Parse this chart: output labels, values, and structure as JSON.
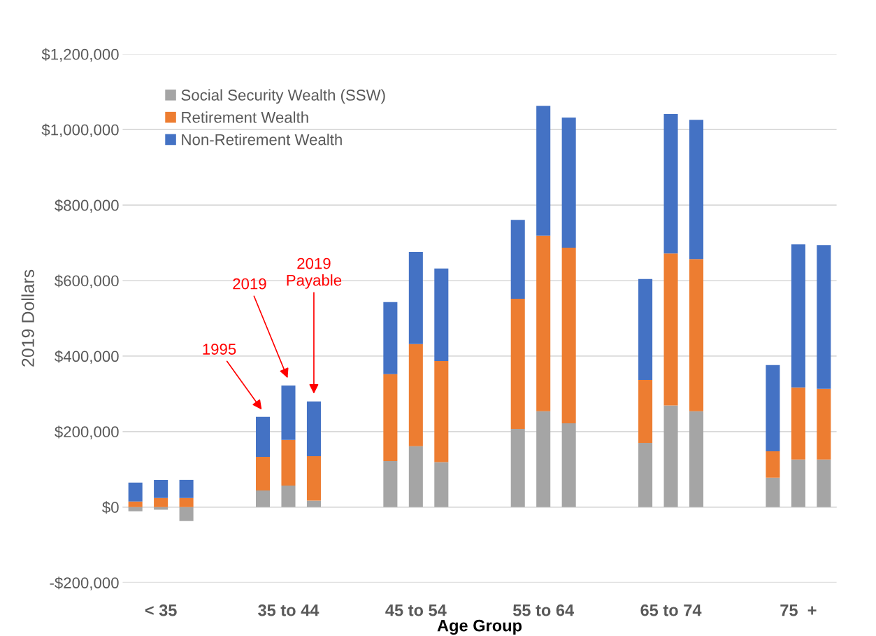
{
  "chart_data": {
    "type": "bar",
    "stacked": true,
    "ylabel": "2019 Dollars",
    "xlabel": "Age Group",
    "categories": [
      null,
      "< 35",
      null,
      null,
      null,
      null,
      "35 to 44",
      null,
      null,
      null,
      null,
      "45 to 54",
      null,
      null,
      null,
      null,
      "55 to 64",
      null,
      null,
      null,
      null,
      "65 to 74",
      null,
      null,
      null,
      null,
      "75  +",
      null
    ],
    "series": [
      {
        "name": "Social Security Wealth (SSW)",
        "color": "#a5a5a5",
        "values": [
          -11000,
          -7000,
          -37000,
          null,
          null,
          44000,
          57000,
          17000,
          null,
          null,
          122000,
          161000,
          119000,
          null,
          null,
          207000,
          254000,
          222000,
          null,
          null,
          170000,
          269000,
          254000,
          null,
          null,
          78000,
          126000,
          126000
        ]
      },
      {
        "name": "Retirement Wealth",
        "color": "#ed7d31",
        "values": [
          15000,
          24000,
          24000,
          null,
          null,
          89000,
          121000,
          118000,
          null,
          null,
          230000,
          271000,
          268000,
          null,
          null,
          345000,
          465000,
          465000,
          null,
          null,
          167000,
          403000,
          403000,
          null,
          null,
          70000,
          191000,
          187000
        ]
      },
      {
        "name": "Non-Retirement Wealth",
        "color": "#4472c4",
        "values": [
          50000,
          48000,
          48000,
          null,
          null,
          106000,
          144000,
          145000,
          null,
          null,
          191000,
          244000,
          245000,
          null,
          null,
          209000,
          344000,
          345000,
          null,
          null,
          267000,
          369000,
          369000,
          null,
          null,
          228000,
          379000,
          381000
        ]
      }
    ],
    "ylim": [
      -200000,
      1200000
    ],
    "yticks": [
      {
        "value": -200000,
        "label": "-$200,000"
      },
      {
        "value": 0,
        "label": "$0"
      },
      {
        "value": 200000,
        "label": "$200,000"
      },
      {
        "value": 400000,
        "label": "$400,000"
      },
      {
        "value": 600000,
        "label": "$600,000"
      },
      {
        "value": 800000,
        "label": "$800,000"
      },
      {
        "value": 1000000,
        "label": "$1,000,000"
      },
      {
        "value": 1200000,
        "label": "$1,200,000"
      }
    ],
    "grid": "y",
    "legend": "top left",
    "annotations": [
      "1995",
      "2019",
      "2019\nPayable"
    ]
  }
}
